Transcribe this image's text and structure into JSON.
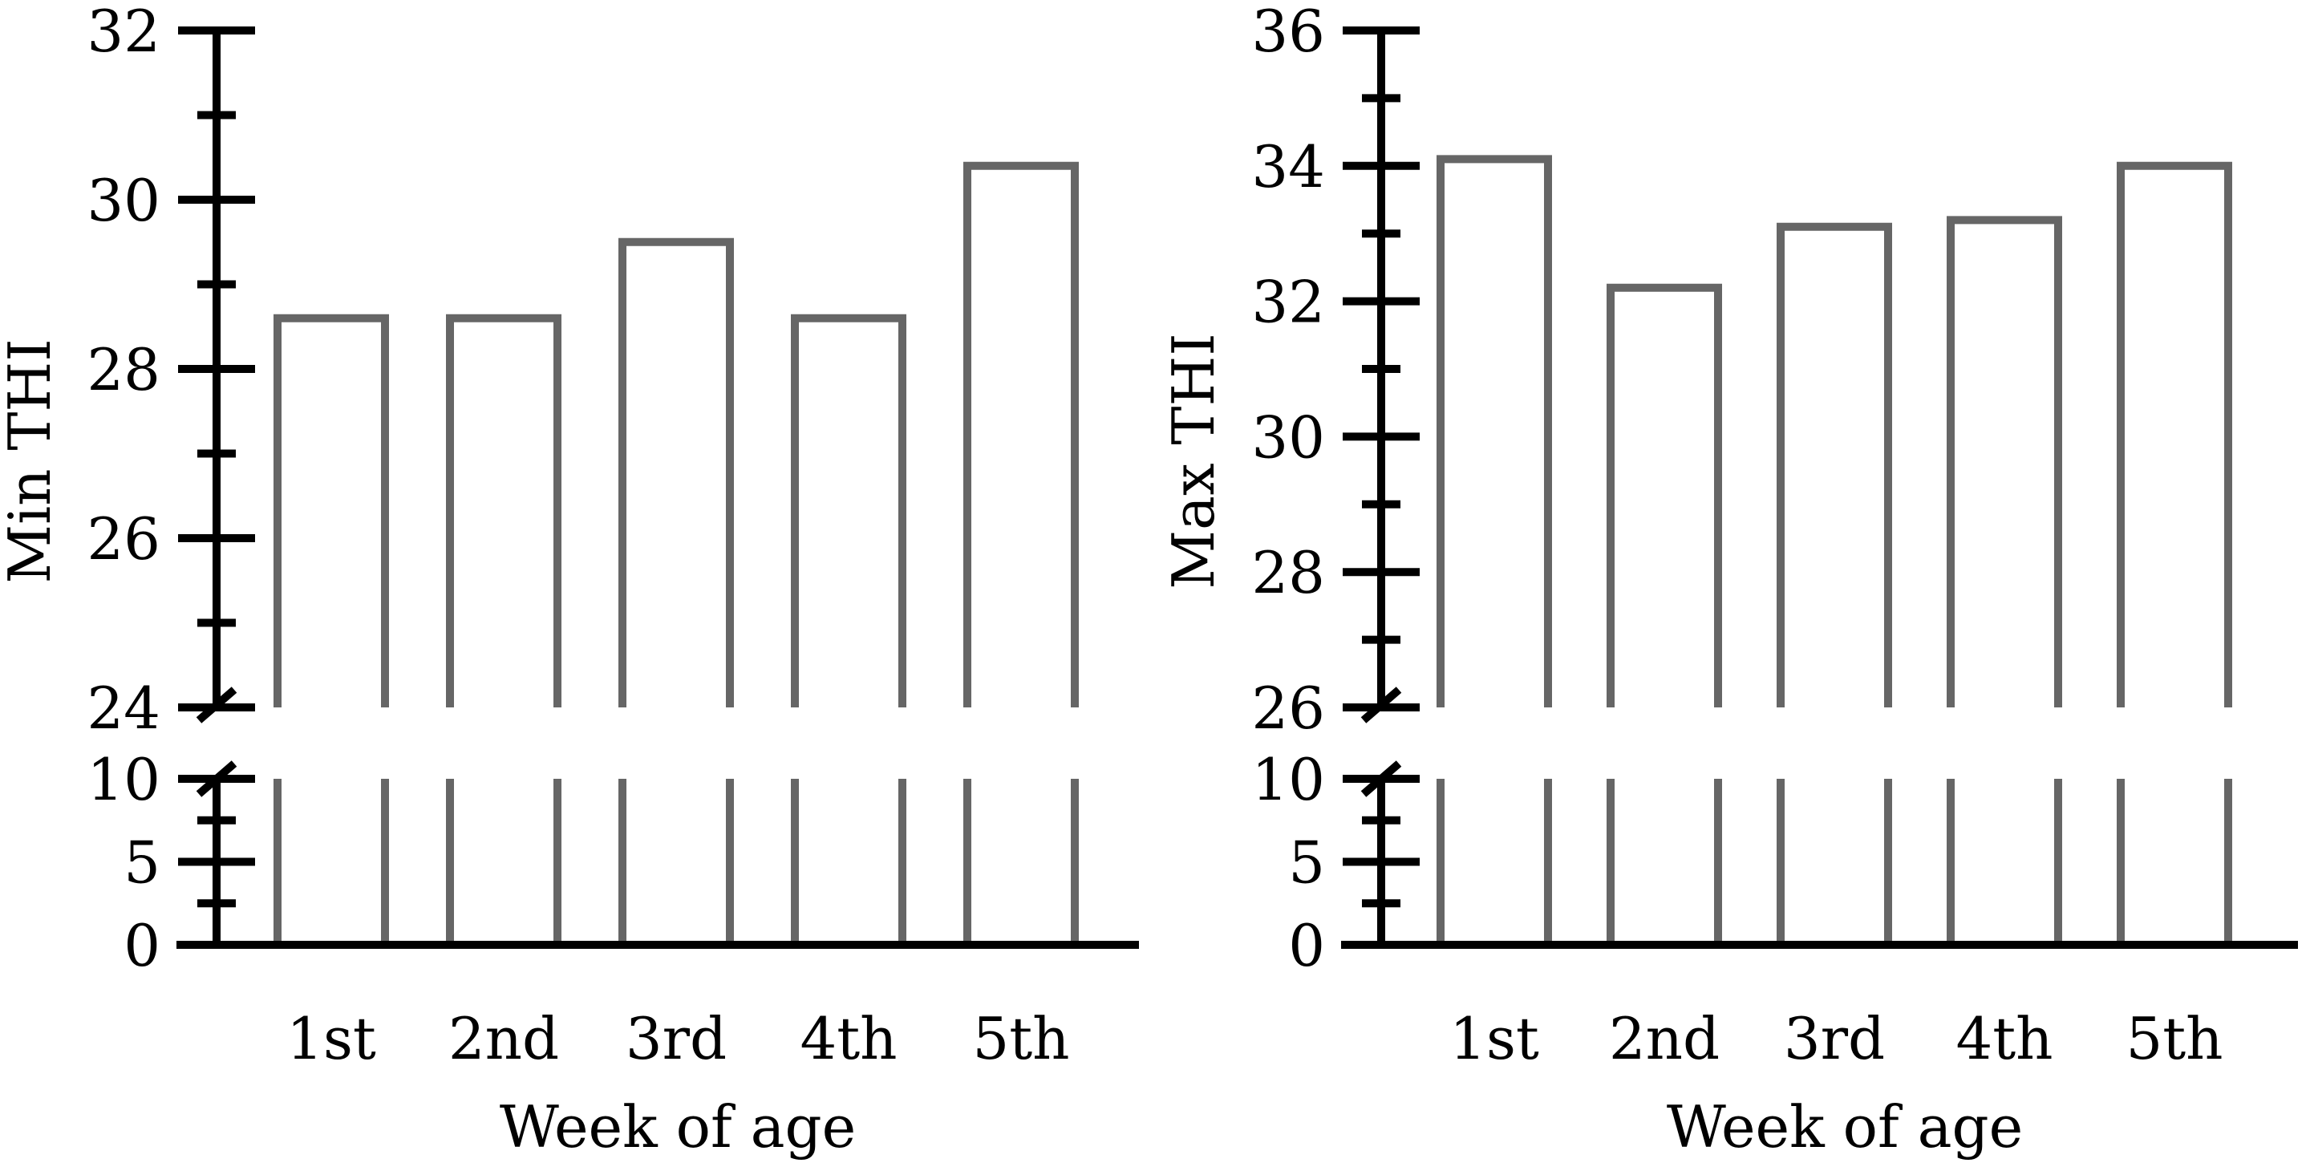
{
  "chart_data": [
    {
      "type": "bar",
      "title": "",
      "xlabel": "Week of age",
      "ylabel": "Min THI",
      "categories": [
        "1st",
        "2nd",
        "3rd",
        "4th",
        "5th"
      ],
      "values": [
        28.6,
        28.6,
        29.5,
        28.6,
        30.4
      ],
      "axis_break": true,
      "ylim_lower": [
        0,
        10
      ],
      "ylim_upper": [
        24,
        32
      ],
      "y_ticks_lower": [
        "0",
        "5",
        "10"
      ],
      "y_ticks_upper": [
        "24",
        "26",
        "28",
        "30",
        "32"
      ],
      "bar_style": "outline",
      "bar_color": "#666666",
      "grid": false
    },
    {
      "type": "bar",
      "title": "",
      "xlabel": "Week of age",
      "ylabel": "Max THI",
      "categories": [
        "1st",
        "2nd",
        "3rd",
        "4th",
        "5th"
      ],
      "values": [
        34.1,
        32.2,
        33.1,
        33.2,
        34.0
      ],
      "axis_break": true,
      "ylim_lower": [
        0,
        10
      ],
      "ylim_upper": [
        26,
        36
      ],
      "y_ticks_lower": [
        "0",
        "5",
        "10"
      ],
      "y_ticks_upper": [
        "26",
        "28",
        "30",
        "32",
        "34",
        "36"
      ],
      "bar_style": "outline",
      "bar_color": "#666666",
      "grid": false
    }
  ]
}
